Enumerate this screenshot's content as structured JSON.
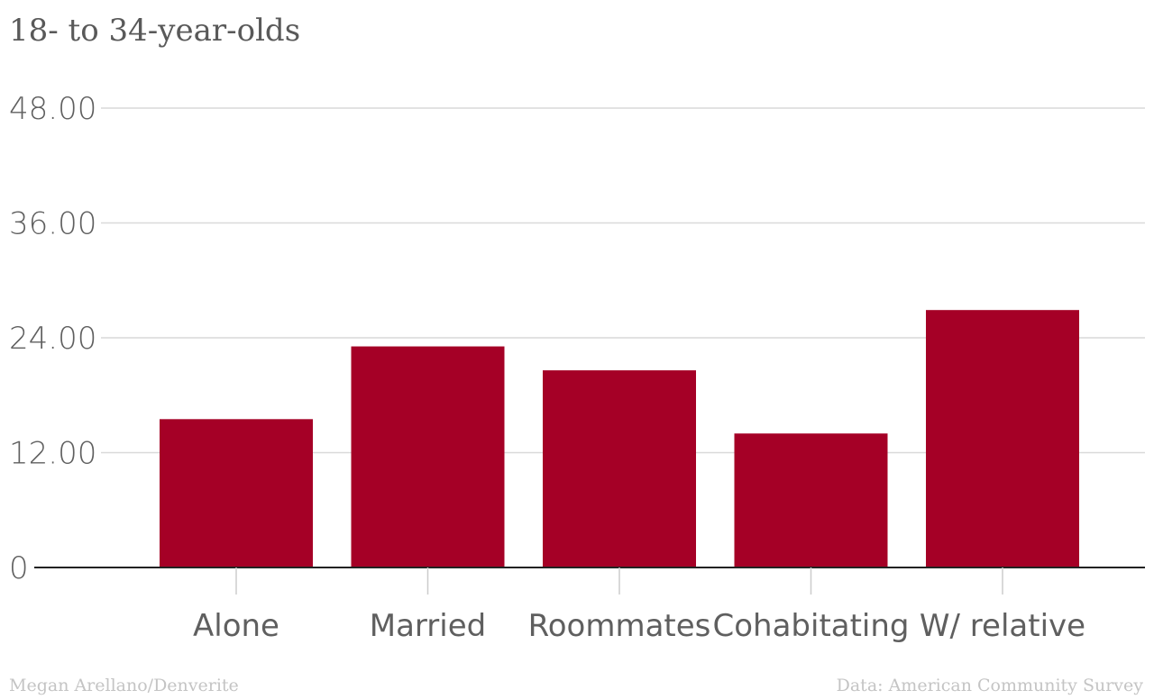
{
  "chart_data": {
    "type": "bar",
    "title": "18- to 34-year-olds",
    "categories": [
      "Alone",
      "Married",
      "Roommates",
      "Cohabitating",
      "W/ relative"
    ],
    "values": [
      15.5,
      23.1,
      20.6,
      14.0,
      26.9
    ],
    "ylim": [
      0,
      48
    ],
    "yticks": [
      0,
      12,
      24,
      36,
      48
    ],
    "ytick_labels": [
      "0",
      "12.00",
      "24.00",
      "36.00",
      "48.00"
    ],
    "grid": true,
    "bar_color": "#a50026",
    "axis_color": "#222222",
    "grid_color": "#d9d9d9"
  },
  "footer": {
    "credit": "Megan Arellano/Denverite",
    "source": "Data: American Community Survey"
  }
}
